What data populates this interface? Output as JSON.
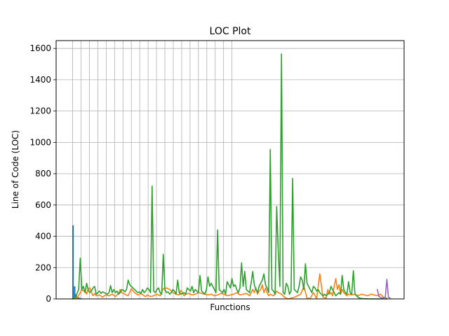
{
  "chart_data": {
    "type": "line",
    "title": "LOC Plot",
    "xlabel": "Functions",
    "ylabel": "Line of Code (LOC)",
    "ylim": [
      0,
      1650
    ],
    "yticks": [
      0,
      200,
      400,
      600,
      800,
      1000,
      1200,
      1400,
      1600
    ],
    "grid": true,
    "x_ticks_labeled": false,
    "colors": [
      "#1f77b4",
      "#ff7f0e",
      "#2ca02c",
      "#9467bd"
    ],
    "bars": {
      "x": [
        0.5,
        1.5,
        2.5,
        3.5,
        4.5,
        5.5,
        6.5,
        7.5
      ],
      "values": [
        470,
        80,
        30,
        12,
        8,
        4,
        2,
        1
      ]
    },
    "series": [
      {
        "x": [
          0,
          3,
          5,
          6,
          7,
          8,
          9,
          10,
          11,
          12,
          13,
          14,
          15,
          17,
          19,
          20,
          21,
          23,
          25,
          27,
          29,
          30,
          31,
          33,
          35,
          37,
          39,
          41,
          43,
          45,
          46,
          47,
          49,
          51,
          53,
          55,
          57,
          59,
          61,
          63,
          65,
          67,
          68,
          69,
          70,
          71,
          73,
          75,
          77,
          79,
          81,
          83,
          85,
          87,
          89,
          91,
          93,
          95,
          97,
          99,
          101,
          103,
          105,
          107,
          109,
          111,
          113,
          114,
          115,
          116,
          117,
          118,
          119,
          120,
          121,
          122,
          123,
          124,
          125,
          126,
          127,
          128,
          129,
          131,
          133,
          135,
          137,
          139,
          141,
          143,
          145,
          147,
          149,
          151,
          153,
          155,
          157,
          159,
          160,
          161,
          162,
          163,
          164,
          165,
          166,
          167,
          168,
          169,
          170,
          171,
          172,
          173,
          175,
          177,
          179,
          181,
          183,
          185,
          187,
          189,
          191,
          193,
          195,
          197
        ],
        "values": [
          0,
          5,
          40,
          60,
          50,
          55,
          30,
          65,
          70,
          40,
          20,
          35,
          20,
          25,
          10,
          20,
          25,
          20,
          30,
          15,
          35,
          60,
          40,
          30,
          20,
          65,
          40,
          25,
          35,
          20,
          15,
          25,
          15,
          20,
          30,
          20,
          65,
          70,
          60,
          40,
          30,
          25,
          55,
          40,
          20,
          30,
          35,
          25,
          30,
          40,
          35,
          30,
          25,
          30,
          20,
          25,
          35,
          30,
          20,
          25,
          30,
          40,
          25,
          30,
          35,
          20,
          60,
          40,
          70,
          30,
          50,
          60,
          90,
          40,
          70,
          40,
          20,
          30,
          25,
          20,
          30,
          50,
          40,
          30,
          10,
          0,
          5,
          10,
          20,
          30,
          80,
          5,
          2,
          40,
          1,
          160,
          10,
          5,
          60,
          30,
          40,
          20,
          80,
          130,
          60,
          90,
          30,
          60,
          40,
          30,
          20,
          30,
          25,
          30,
          20,
          30,
          25,
          20,
          30,
          25,
          20,
          30,
          10,
          5
        ]
      },
      {
        "x": [
          0,
          2,
          4,
          5,
          6,
          7,
          8,
          9,
          10,
          11,
          12,
          13,
          14,
          15,
          16,
          17,
          18,
          19,
          20,
          21,
          22,
          23,
          24,
          25,
          26,
          27,
          28,
          29,
          30,
          31,
          32,
          33,
          34,
          35,
          36,
          37,
          38,
          39,
          40,
          41,
          42,
          43,
          44,
          45,
          46,
          47,
          48,
          49,
          50,
          51,
          52,
          53,
          54,
          55,
          56,
          57,
          58,
          59,
          60,
          61,
          62,
          63,
          64,
          65,
          66,
          67,
          68,
          69,
          70,
          71,
          72,
          73,
          74,
          75,
          76,
          77,
          78,
          79,
          80,
          81,
          82,
          83,
          84,
          85,
          86,
          87,
          88,
          89,
          90,
          91,
          92,
          93,
          94,
          95,
          96,
          97,
          98,
          99,
          100,
          101,
          102,
          103,
          104,
          105,
          106,
          107,
          108,
          109,
          110,
          111,
          112,
          113,
          114,
          115,
          116,
          117,
          118,
          119,
          120,
          121,
          122,
          123,
          124,
          125,
          126,
          127,
          128,
          129,
          130,
          131,
          132,
          133,
          134,
          135,
          136,
          137,
          138,
          139,
          140,
          141,
          142,
          143,
          144,
          145,
          146,
          147,
          148,
          149,
          150,
          151,
          152,
          153,
          154,
          155,
          156,
          157,
          158,
          159,
          160,
          161,
          162,
          163,
          164,
          165,
          166,
          167,
          168,
          169,
          170,
          171,
          172,
          173,
          174,
          175,
          176,
          177,
          178,
          179,
          180,
          181,
          182,
          183,
          184,
          185,
          186,
          187,
          188,
          189,
          190,
          191,
          192,
          193,
          194,
          195,
          196,
          197
        ],
        "values": [
          0,
          10,
          60,
          260,
          60,
          80,
          40,
          100,
          55,
          40,
          50,
          70,
          80,
          30,
          40,
          50,
          35,
          45,
          40,
          35,
          30,
          40,
          85,
          40,
          60,
          40,
          50,
          30,
          40,
          60,
          55,
          45,
          60,
          120,
          90,
          80,
          70,
          60,
          50,
          40,
          45,
          35,
          60,
          40,
          50,
          70,
          60,
          40,
          720,
          50,
          40,
          60,
          70,
          40,
          30,
          285,
          60,
          40,
          45,
          30,
          40,
          60,
          50,
          30,
          120,
          40,
          30,
          35,
          40,
          30,
          70,
          60,
          50,
          80,
          40,
          60,
          50,
          40,
          150,
          50,
          40,
          30,
          60,
          140,
          80,
          100,
          80,
          60,
          40,
          440,
          60,
          50,
          40,
          60,
          30,
          110,
          90,
          70,
          130,
          80,
          90,
          60,
          40,
          70,
          230,
          80,
          175,
          60,
          50,
          40,
          100,
          175,
          90,
          60,
          40,
          80,
          100,
          120,
          160,
          90,
          70,
          40,
          955,
          60,
          50,
          30,
          590,
          300,
          80,
          1565,
          40,
          30,
          100,
          80,
          30,
          50,
          770,
          60,
          50,
          40,
          80,
          140,
          120,
          60,
          225,
          100,
          80,
          60,
          40,
          80,
          70,
          50,
          60,
          40,
          30,
          20,
          30,
          20,
          30,
          40,
          80,
          60,
          40,
          20,
          30,
          40,
          30,
          150,
          60,
          40,
          30,
          110,
          40,
          30,
          180,
          30,
          20,
          10,
          5,
          3,
          2,
          1,
          1,
          0,
          0,
          0,
          0,
          0,
          0,
          0,
          0,
          0,
          0,
          0,
          0,
          0
        ]
      },
      {
        "x": [
          191,
          192,
          193,
          194,
          195,
          196,
          197,
          198,
          199
        ],
        "values": [
          60,
          15,
          10,
          5,
          8,
          10,
          125,
          10,
          5
        ]
      }
    ]
  }
}
